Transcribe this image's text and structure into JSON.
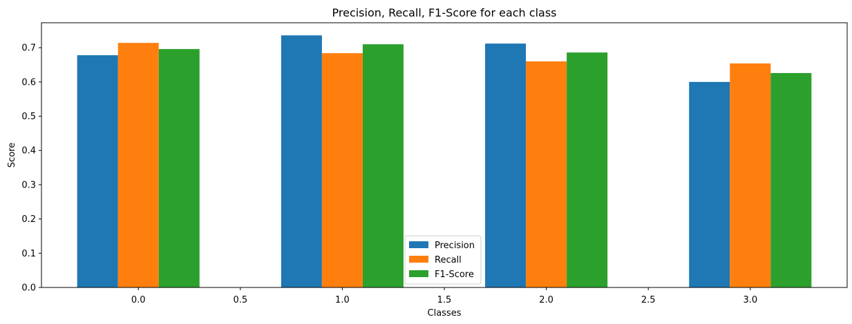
{
  "chart_data": {
    "type": "bar",
    "title": "Precision, Recall, F1-Score for each class",
    "xlabel": "Classes",
    "ylabel": "Score",
    "x_positions": [
      0,
      1,
      2,
      3
    ],
    "bar_width": 0.2,
    "series": [
      {
        "name": "Precision",
        "color": "#1f77b4",
        "values": [
          0.678,
          0.736,
          0.712,
          0.6
        ]
      },
      {
        "name": "Recall",
        "color": "#ff7f0e",
        "values": [
          0.714,
          0.684,
          0.66,
          0.654
        ]
      },
      {
        "name": "F1-Score",
        "color": "#2ca02c",
        "values": [
          0.696,
          0.71,
          0.686,
          0.626
        ]
      }
    ],
    "xlim": [
      -0.475,
      3.475
    ],
    "ylim": [
      0,
      0.7728
    ],
    "xticks": [
      "0.0",
      "0.5",
      "1.0",
      "1.5",
      "2.0",
      "2.5",
      "3.0"
    ],
    "xtick_values": [
      0,
      0.5,
      1,
      1.5,
      2,
      2.5,
      3
    ],
    "yticks": [
      "0.0",
      "0.1",
      "0.2",
      "0.3",
      "0.4",
      "0.5",
      "0.6",
      "0.7"
    ],
    "ytick_values": [
      0,
      0.1,
      0.2,
      0.3,
      0.4,
      0.5,
      0.6,
      0.7
    ],
    "grid": false,
    "legend_position": "lower center"
  }
}
